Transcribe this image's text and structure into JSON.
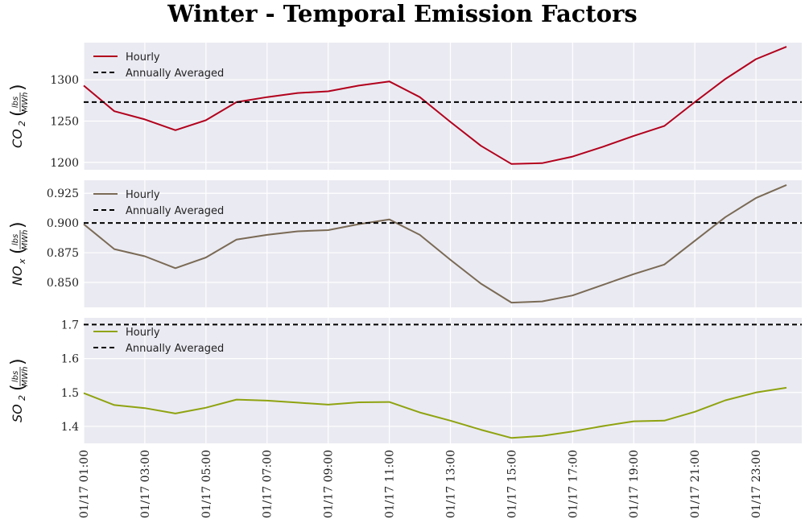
{
  "chart_data": {
    "title": "Winter - Temporal Emission Factors",
    "type": "line",
    "x_labels": [
      "01/17  01:00",
      "01/17  03:00",
      "01/17  05:00",
      "01/17  07:00",
      "01/17  09:00",
      "01/17  11:00",
      "01/17  13:00",
      "01/17  15:00",
      "01/17  17:00",
      "01/17  19:00",
      "01/17  21:00",
      "01/17  23:00"
    ],
    "x_hours": [
      1,
      2,
      3,
      4,
      5,
      6,
      7,
      8,
      9,
      10,
      11,
      12,
      13,
      14,
      15,
      16,
      17,
      18,
      19,
      20,
      21,
      22,
      23,
      24
    ],
    "grid": true,
    "panels": [
      {
        "ylabel_main": "CO",
        "ylabel_sub": "2",
        "ylabel_unit_num": "lbs",
        "ylabel_unit_den": "MWh",
        "ylim": [
          1191,
          1345
        ],
        "yticks": [
          1200,
          1250,
          1300
        ],
        "ytick_labels": [
          "1200",
          "1250",
          "1300"
        ],
        "series": [
          {
            "name": "Hourly",
            "style": "solid",
            "color": "#b2001c",
            "values": [
              1293,
              1262,
              1252,
              1239,
              1251,
              1273,
              1279,
              1284,
              1286,
              1293,
              1298,
              1279,
              1249,
              1220,
              1198,
              1199,
              1207,
              1219,
              1232,
              1244,
              1273,
              1301,
              1325,
              1340
            ]
          },
          {
            "name": "Annually Averaged",
            "style": "dashed",
            "color": "#000000",
            "value": 1273
          }
        ],
        "legend": [
          "Hourly",
          "Annually Averaged"
        ]
      },
      {
        "ylabel_main": "NO",
        "ylabel_sub": "x",
        "ylabel_unit_num": "lbs",
        "ylabel_unit_den": "MWh",
        "ylim": [
          0.829,
          0.936
        ],
        "yticks": [
          0.85,
          0.875,
          0.9,
          0.925
        ],
        "ytick_labels": [
          "0.850",
          "0.875",
          "0.900",
          "0.925"
        ],
        "series": [
          {
            "name": "Hourly",
            "style": "solid",
            "color": "#7a6a55",
            "values": [
              0.899,
              0.878,
              0.872,
              0.862,
              0.871,
              0.886,
              0.89,
              0.893,
              0.894,
              0.899,
              0.903,
              0.89,
              0.869,
              0.849,
              0.833,
              0.834,
              0.839,
              0.848,
              0.857,
              0.865,
              0.885,
              0.905,
              0.921,
              0.932
            ]
          },
          {
            "name": "Annually Averaged",
            "style": "dashed",
            "color": "#000000",
            "value": 0.9
          }
        ],
        "legend": [
          "Hourly",
          "Annually Averaged"
        ]
      },
      {
        "ylabel_main": "SO",
        "ylabel_sub": "2",
        "ylabel_unit_num": "lbs",
        "ylabel_unit_den": "MWh",
        "ylim": [
          1.35,
          1.72
        ],
        "yticks": [
          1.4,
          1.5,
          1.6,
          1.7
        ],
        "ytick_labels": [
          "1.4",
          "1.5",
          "1.6",
          "1.7"
        ],
        "series": [
          {
            "name": "Hourly",
            "style": "solid",
            "color": "#8fa310",
            "values": [
              1.498,
              1.463,
              1.454,
              1.438,
              1.455,
              1.479,
              1.476,
              1.47,
              1.464,
              1.471,
              1.472,
              1.441,
              1.417,
              1.39,
              1.366,
              1.372,
              1.385,
              1.401,
              1.415,
              1.417,
              1.443,
              1.477,
              1.5,
              1.514
            ]
          },
          {
            "name": "Annually Averaged",
            "style": "dashed",
            "color": "#000000",
            "value": 1.7
          }
        ],
        "legend": [
          "Hourly",
          "Annually Averaged"
        ]
      }
    ]
  }
}
